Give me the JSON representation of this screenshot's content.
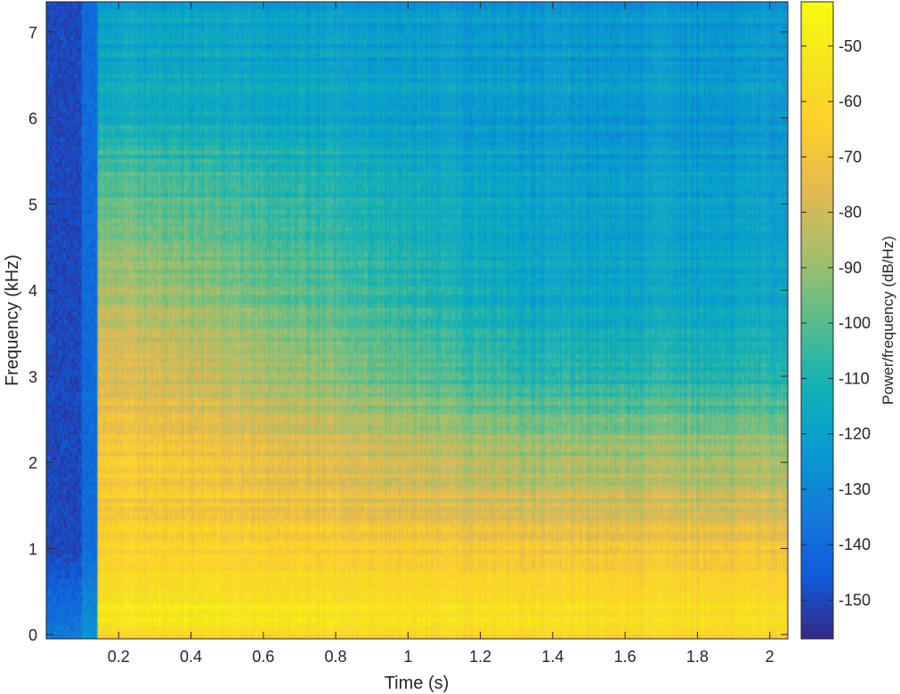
{
  "chart_data": {
    "type": "heatmap",
    "title": "",
    "xlabel": "Time (s)",
    "ylabel": "Frequency (kHz)",
    "xlim": [
      0.0,
      2.05
    ],
    "ylim": [
      -0.05,
      7.35
    ],
    "xticks": [
      0.2,
      0.4,
      0.6,
      0.8,
      1.0,
      1.2,
      1.4,
      1.6,
      1.8,
      2.0
    ],
    "xtick_labels": [
      "0.2",
      "0.4",
      "0.6",
      "0.8",
      "1",
      "1.2",
      "1.4",
      "1.6",
      "1.8",
      "2"
    ],
    "yticks": [
      0,
      1,
      2,
      3,
      4,
      5,
      6,
      7
    ],
    "ytick_labels": [
      "0",
      "1",
      "2",
      "3",
      "4",
      "5",
      "6",
      "7"
    ],
    "colormap": "parula",
    "colorbar": {
      "label": "Power/frequency (dB/Hz)",
      "range": [
        -157,
        -42
      ],
      "ticks": [
        -50,
        -60,
        -70,
        -80,
        -90,
        -100,
        -110,
        -120,
        -130,
        -140,
        -150
      ],
      "tick_labels": [
        "-50",
        "-60",
        "-70",
        "-80",
        "-90",
        "-100",
        "-110",
        "-120",
        "-130",
        "-140",
        "-150"
      ],
      "placement": "right"
    },
    "grid": false,
    "onset_time_s": 0.14,
    "freq_profile_db": {
      "freq_khz": [
        0.0,
        0.1,
        0.2,
        0.3,
        0.5,
        0.7,
        1.0,
        1.2,
        1.5,
        1.7,
        2.0,
        2.3,
        2.6,
        2.8,
        3.0,
        3.3,
        3.6,
        3.8,
        4.0,
        4.5,
        5.0,
        5.5,
        5.8,
        6.0,
        6.5,
        7.0,
        7.4
      ],
      "early_db": [
        -62,
        -53,
        -49,
        -50,
        -55,
        -60,
        -62,
        -64,
        -65,
        -66,
        -64,
        -68,
        -70,
        -73,
        -75,
        -77,
        -80,
        -82,
        -85,
        -90,
        -97,
        -103,
        -107,
        -113,
        -116,
        -117,
        -118
      ],
      "late_db": [
        -63,
        -57,
        -55,
        -57,
        -60,
        -66,
        -70,
        -75,
        -78,
        -85,
        -88,
        -92,
        -100,
        -103,
        -110,
        -113,
        -115,
        -117,
        -118,
        -120,
        -121,
        -122,
        -123,
        -123,
        -124,
        -124,
        -124
      ]
    }
  }
}
